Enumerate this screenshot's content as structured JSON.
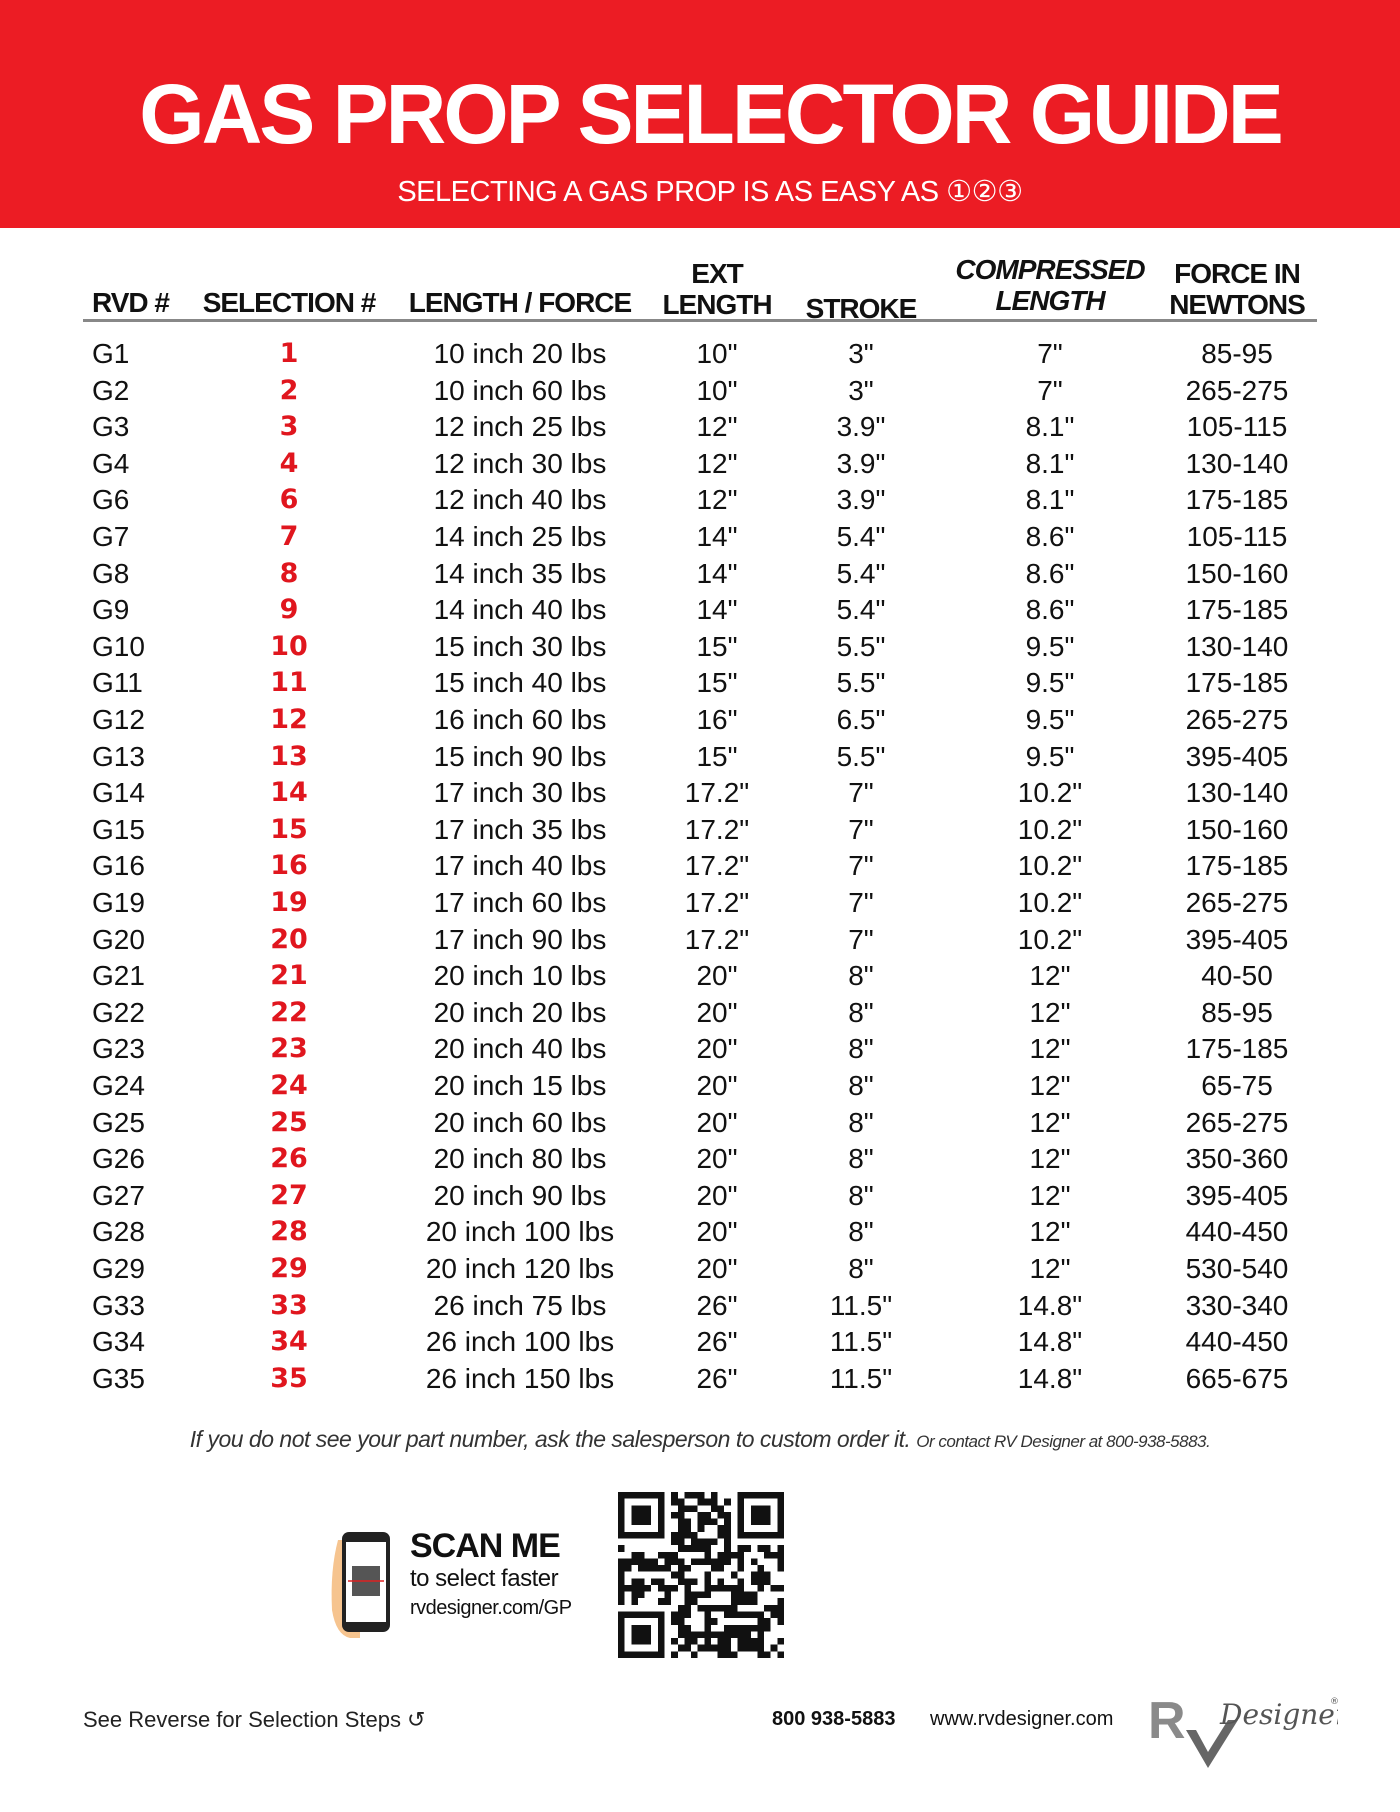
{
  "header": {
    "title": "GAS PROP SELECTOR GUIDE",
    "subtitle": "SELECTING A GAS PROP IS AS EASY AS ①②③",
    "brand_color": "#ec1c24"
  },
  "table": {
    "columns": [
      {
        "line1": "",
        "line2": "RVD #"
      },
      {
        "line1": "",
        "line2": "SELECTION #"
      },
      {
        "line1": "",
        "line2": "LENGTH / FORCE"
      },
      {
        "line1": "EXT",
        "line2": "LENGTH"
      },
      {
        "line1": "",
        "line2": "STROKE"
      },
      {
        "line1": "COMPRESSED",
        "line2": "LENGTH"
      },
      {
        "line1": "FORCE IN",
        "line2": "NEWTONS"
      }
    ],
    "rows": [
      [
        "G1",
        "1",
        "10 inch 20 lbs",
        "10\"",
        "3\"",
        "7\"",
        "85-95"
      ],
      [
        "G2",
        "2",
        "10 inch 60 lbs",
        "10\"",
        "3\"",
        "7\"",
        "265-275"
      ],
      [
        "G3",
        "3",
        "12 inch 25 lbs",
        "12\"",
        "3.9\"",
        "8.1\"",
        "105-115"
      ],
      [
        "G4",
        "4",
        "12 inch 30 lbs",
        "12\"",
        "3.9\"",
        "8.1\"",
        "130-140"
      ],
      [
        "G6",
        "6",
        "12 inch 40 lbs",
        "12\"",
        "3.9\"",
        "8.1\"",
        "175-185"
      ],
      [
        "G7",
        "7",
        "14 inch 25 lbs",
        "14\"",
        "5.4\"",
        "8.6\"",
        "105-115"
      ],
      [
        "G8",
        "8",
        "14 inch 35 lbs",
        "14\"",
        "5.4\"",
        "8.6\"",
        "150-160"
      ],
      [
        "G9",
        "9",
        "14 inch 40 lbs",
        "14\"",
        "5.4\"",
        "8.6\"",
        "175-185"
      ],
      [
        "G10",
        "10",
        "15 inch 30 lbs",
        "15\"",
        "5.5\"",
        "9.5\"",
        "130-140"
      ],
      [
        "G11",
        "11",
        "15 inch 40 lbs",
        "15\"",
        "5.5\"",
        "9.5\"",
        "175-185"
      ],
      [
        "G12",
        "12",
        "16 inch 60 lbs",
        "16\"",
        "6.5\"",
        "9.5\"",
        "265-275"
      ],
      [
        "G13",
        "13",
        "15 inch 90 lbs",
        "15\"",
        "5.5\"",
        "9.5\"",
        "395-405"
      ],
      [
        "G14",
        "14",
        "17 inch 30 lbs",
        "17.2\"",
        "7\"",
        "10.2\"",
        "130-140"
      ],
      [
        "G15",
        "15",
        "17 inch 35 lbs",
        "17.2\"",
        "7\"",
        "10.2\"",
        "150-160"
      ],
      [
        "G16",
        "16",
        "17 inch 40 lbs",
        "17.2\"",
        "7\"",
        "10.2\"",
        "175-185"
      ],
      [
        "G19",
        "19",
        "17 inch 60 lbs",
        "17.2\"",
        "7\"",
        "10.2\"",
        "265-275"
      ],
      [
        "G20",
        "20",
        "17 inch 90 lbs",
        "17.2\"",
        "7\"",
        "10.2\"",
        "395-405"
      ],
      [
        "G21",
        "21",
        "20 inch 10 lbs",
        "20\"",
        "8\"",
        "12\"",
        "40-50"
      ],
      [
        "G22",
        "22",
        "20 inch 20 lbs",
        "20\"",
        "8\"",
        "12\"",
        "85-95"
      ],
      [
        "G23",
        "23",
        "20 inch 40 lbs",
        "20\"",
        "8\"",
        "12\"",
        "175-185"
      ],
      [
        "G24",
        "24",
        "20 inch 15 lbs",
        "20\"",
        "8\"",
        "12\"",
        "65-75"
      ],
      [
        "G25",
        "25",
        "20 inch 60 lbs",
        "20\"",
        "8\"",
        "12\"",
        "265-275"
      ],
      [
        "G26",
        "26",
        "20 inch 80 lbs",
        "20\"",
        "8\"",
        "12\"",
        "350-360"
      ],
      [
        "G27",
        "27",
        "20 inch 90 lbs",
        "20\"",
        "8\"",
        "12\"",
        "395-405"
      ],
      [
        "G28",
        "28",
        "20 inch 100 lbs",
        "20\"",
        "8\"",
        "12\"",
        "440-450"
      ],
      [
        "G29",
        "29",
        "20 inch 120 lbs",
        "20\"",
        "8\"",
        "12\"",
        "530-540"
      ],
      [
        "G33",
        "33",
        "26 inch 75 lbs",
        "26\"",
        "11.5\"",
        "14.8\"",
        "330-340"
      ],
      [
        "G34",
        "34",
        "26 inch 100 lbs",
        "26\"",
        "11.5\"",
        "14.8\"",
        "440-450"
      ],
      [
        "G35",
        "35",
        "26 inch 150 lbs",
        "26\"",
        "11.5\"",
        "14.8\"",
        "665-675"
      ]
    ]
  },
  "note": {
    "main": "If you do not see your part number, ask the salesperson to custom order it.",
    "small": "Or contact RV Designer at 800-938-5883."
  },
  "scan": {
    "title": "SCAN ME",
    "line2": "to select faster",
    "url": "rvdesigner.com/GP"
  },
  "footer": {
    "reverse": "See Reverse for Selection Steps ↺",
    "phone": "800 938-5883",
    "website": "www.rvdesigner.com",
    "logo_text": "RV Designer"
  }
}
